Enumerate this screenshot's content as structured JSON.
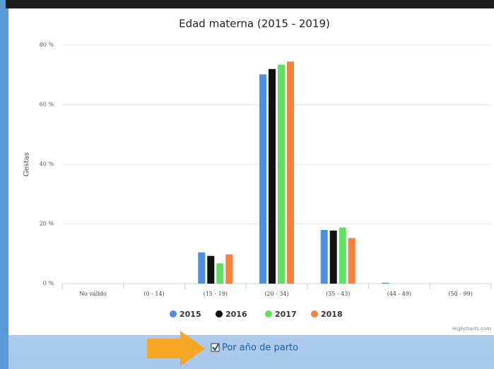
{
  "chart_data": {
    "type": "bar",
    "title": "Edad materna (2015 - 2019)",
    "y_label": "Gestas",
    "categories": [
      "No válido",
      "(0 - 14)",
      "(15 - 19)",
      "(20 - 34)",
      "(35 - 43)",
      "(44 - 49)",
      "(50 - 99)"
    ],
    "series": [
      {
        "name": "2015",
        "color": "#4a8fe0",
        "values": [
          0,
          0,
          10.5,
          70.2,
          18,
          0.3,
          0
        ]
      },
      {
        "name": "2016",
        "color": "#111111",
        "values": [
          0,
          0,
          9.3,
          72,
          17.8,
          0,
          0
        ]
      },
      {
        "name": "2017",
        "color": "#5fe05f",
        "values": [
          0,
          0,
          6.8,
          73.5,
          18.8,
          0,
          0
        ]
      },
      {
        "name": "2018",
        "color": "#f5823a",
        "values": [
          0,
          0,
          9.8,
          74.5,
          15.3,
          0,
          0
        ]
      }
    ],
    "ylim": [
      0,
      80
    ],
    "yticks": [
      {
        "value": 0,
        "label": "0 %"
      },
      {
        "value": 20,
        "label": "20 %"
      },
      {
        "value": 40,
        "label": "40 %"
      },
      {
        "value": 60,
        "label": "60 %"
      },
      {
        "value": 80,
        "label": "80 %"
      }
    ],
    "grid": true,
    "credits": "Highcharts.com"
  },
  "ui": {
    "checkbox_label": "Por año de parto"
  }
}
